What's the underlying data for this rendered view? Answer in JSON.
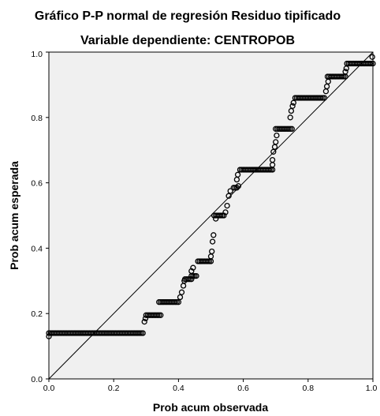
{
  "chart_data": {
    "type": "scatter",
    "title": "Gráfico P-P normal de regresión Residuo tipificado",
    "subtitle": "Variable dependiente: CENTROPOB",
    "xlabel": "Prob acum observada",
    "ylabel": "Prob acum esperada",
    "xlim": [
      0.0,
      1.0
    ],
    "ylim": [
      0.0,
      1.0
    ],
    "x_ticks": [
      "0.0",
      "0.2",
      "0.4",
      "0.6",
      "0.8",
      "1.0"
    ],
    "y_ticks": [
      "0.0",
      "0.2",
      "0.4",
      "0.6",
      "0.8",
      "1.0"
    ],
    "reference_line": [
      [
        0.0,
        0.0
      ],
      [
        1.0,
        1.0
      ]
    ],
    "grid": false,
    "legend": "none",
    "colors": {
      "plot_background": "#f0f0f0",
      "marker": "#000000",
      "line": "#000000"
    },
    "steps": [
      {
        "x_from": 0.0,
        "x_to": 0.29,
        "y": 0.14
      },
      {
        "x_from": 0.3,
        "x_to": 0.345,
        "y": 0.195
      },
      {
        "x_from": 0.34,
        "x_to": 0.4,
        "y": 0.235
      },
      {
        "x_from": 0.42,
        "x_to": 0.44,
        "y": 0.305
      },
      {
        "x_from": 0.44,
        "x_to": 0.455,
        "y": 0.315
      },
      {
        "x_from": 0.46,
        "x_to": 0.5,
        "y": 0.36
      },
      {
        "x_from": 0.51,
        "x_to": 0.54,
        "y": 0.5
      },
      {
        "x_from": 0.57,
        "x_to": 0.58,
        "y": 0.585
      },
      {
        "x_from": 0.59,
        "x_to": 0.69,
        "y": 0.64
      },
      {
        "x_from": 0.7,
        "x_to": 0.75,
        "y": 0.765
      },
      {
        "x_from": 0.76,
        "x_to": 0.85,
        "y": 0.86
      },
      {
        "x_from": 0.86,
        "x_to": 0.915,
        "y": 0.925
      },
      {
        "x_from": 0.92,
        "x_to": 1.0,
        "y": 0.965
      }
    ],
    "scatter_points": [
      [
        0.0,
        0.13
      ],
      [
        0.295,
        0.175
      ],
      [
        0.298,
        0.185
      ],
      [
        0.405,
        0.25
      ],
      [
        0.41,
        0.265
      ],
      [
        0.415,
        0.285
      ],
      [
        0.418,
        0.3
      ],
      [
        0.44,
        0.33
      ],
      [
        0.445,
        0.34
      ],
      [
        0.5,
        0.375
      ],
      [
        0.503,
        0.39
      ],
      [
        0.505,
        0.42
      ],
      [
        0.508,
        0.44
      ],
      [
        0.515,
        0.49
      ],
      [
        0.545,
        0.51
      ],
      [
        0.55,
        0.53
      ],
      [
        0.555,
        0.56
      ],
      [
        0.56,
        0.575
      ],
      [
        0.585,
        0.59
      ],
      [
        0.58,
        0.61
      ],
      [
        0.583,
        0.625
      ],
      [
        0.69,
        0.655
      ],
      [
        0.69,
        0.67
      ],
      [
        0.693,
        0.695
      ],
      [
        0.697,
        0.71
      ],
      [
        0.7,
        0.725
      ],
      [
        0.703,
        0.745
      ],
      [
        0.745,
        0.8
      ],
      [
        0.748,
        0.82
      ],
      [
        0.752,
        0.835
      ],
      [
        0.755,
        0.845
      ],
      [
        0.855,
        0.88
      ],
      [
        0.858,
        0.895
      ],
      [
        0.862,
        0.91
      ],
      [
        0.915,
        0.94
      ],
      [
        0.918,
        0.95
      ],
      [
        0.998,
        0.985
      ]
    ]
  }
}
